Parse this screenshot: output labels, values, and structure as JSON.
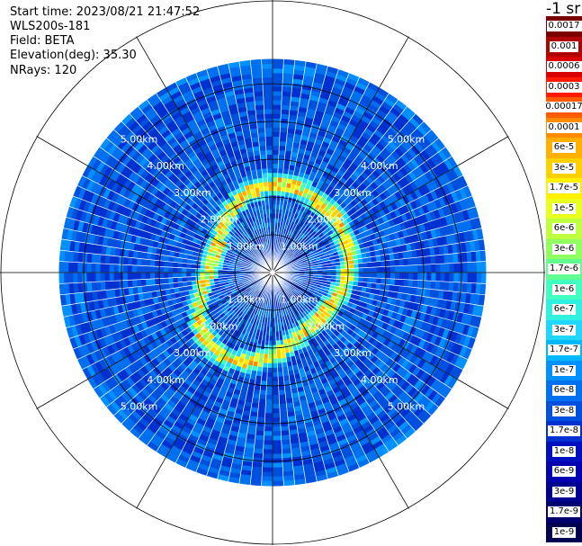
{
  "header": {
    "start_time": "Start time: 2023/08/21 21:47:52",
    "device": "WLS200s-181",
    "field": "Field: BETA",
    "elevation": "Elevation(deg): 35.30",
    "nrays": "NRays: 120"
  },
  "colorbar": {
    "title": "-1 sr",
    "labels": [
      "0.0017",
      "0.001",
      "0.0006",
      "0.0003",
      "0.00017",
      "0.0001",
      "6e-5",
      "3e-5",
      "1.7e-5",
      "1e-5",
      "6e-6",
      "3e-6",
      "1.7e-6",
      "1e-6",
      "6e-7",
      "3e-7",
      "1.7e-7",
      "1e-7",
      "6e-8",
      "3e-8",
      "1.7e-8",
      "1e-8",
      "6e-9",
      "3e-9",
      "1.7e-9",
      "1e-9"
    ],
    "colors": [
      "#7a0000",
      "#b00000",
      "#d80000",
      "#ff1a00",
      "#ff5a00",
      "#ff8c00",
      "#ffb000",
      "#ffd000",
      "#fff000",
      "#e8ff20",
      "#c0ff40",
      "#90ff60",
      "#60ff90",
      "#40ffc0",
      "#30f0e0",
      "#20d8ff",
      "#00b8ff",
      "#0090ff",
      "#0070f0",
      "#0050e0",
      "#0030d0",
      "#0010c0",
      "#0000b0",
      "#000090",
      "#000070",
      "#000050"
    ]
  },
  "chart_data": {
    "type": "polar",
    "title": "",
    "nrays": 120,
    "range_unit": "km",
    "rings": [
      {
        "range_km": 1.0,
        "label": "1.00km"
      },
      {
        "range_km": 2.0,
        "label": "2.00km"
      },
      {
        "range_km": 3.0,
        "label": "3.00km"
      },
      {
        "range_km": 4.0,
        "label": "4.00km"
      },
      {
        "range_km": 5.0,
        "label": "5.00km"
      }
    ],
    "max_range_km": 5.6,
    "background_level": "3e-8",
    "feature": {
      "description_level": "3e-6",
      "peak_level": "3e-5",
      "range_km_min": 2.0,
      "range_km_max": 2.7
    }
  }
}
